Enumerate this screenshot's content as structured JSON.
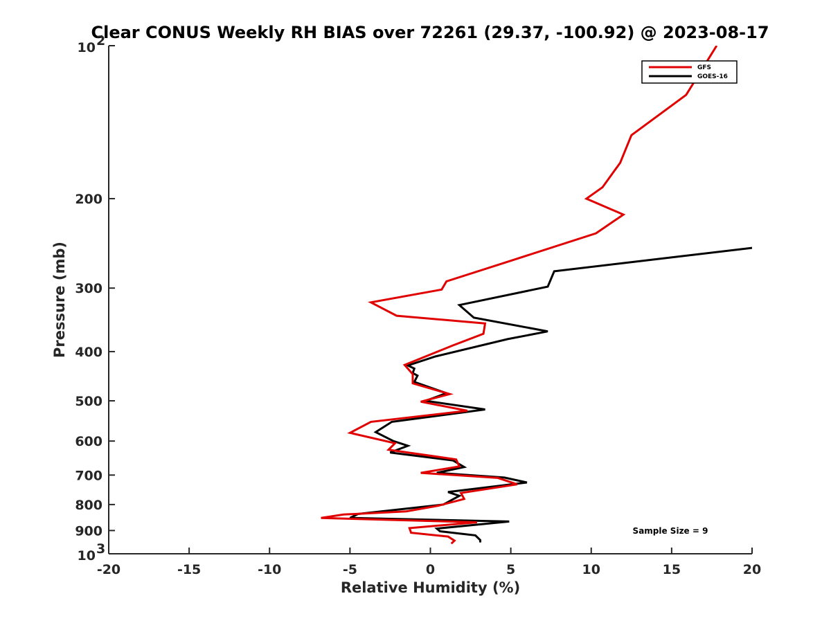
{
  "chart_data": {
    "type": "line",
    "title": "Clear CONUS Weekly RH BIAS over 72261 (29.37, -100.92) @ 2023-08-17",
    "xlabel": "Relative Humidity (%)",
    "ylabel": "Pressure (mb)",
    "xlim": [
      -20,
      20
    ],
    "ylim": [
      1000,
      100
    ],
    "yscale": "log",
    "y_reversed": true,
    "grid": false,
    "legend_position": "top-right",
    "x_ticks": [
      "-20",
      "-15",
      "-10",
      "-5",
      "0",
      "5",
      "10",
      "15",
      "20"
    ],
    "y_ticks": [
      {
        "value": 100,
        "base": "10",
        "exp": "2"
      },
      {
        "value": 200,
        "label": "200"
      },
      {
        "value": 300,
        "label": "300"
      },
      {
        "value": 400,
        "label": "400"
      },
      {
        "value": 500,
        "label": "500"
      },
      {
        "value": 600,
        "label": "600"
      },
      {
        "value": 700,
        "label": "700"
      },
      {
        "value": 800,
        "label": "800"
      },
      {
        "value": 900,
        "label": "900"
      },
      {
        "value": 1000,
        "base": "10",
        "exp": "3"
      }
    ],
    "annotation": "Sample Size = 9",
    "series": [
      {
        "name": "GFS",
        "color": "#e00000",
        "points": [
          [
            17.8,
            100
          ],
          [
            15.9,
            125
          ],
          [
            12.5,
            150
          ],
          [
            11.8,
            170
          ],
          [
            10.7,
            190
          ],
          [
            9.7,
            200
          ],
          [
            12.0,
            215
          ],
          [
            10.3,
            234
          ],
          [
            5.0,
            265
          ],
          [
            1.0,
            291
          ],
          [
            0.7,
            302
          ],
          [
            -3.7,
            320
          ],
          [
            -2.1,
            340
          ],
          [
            3.4,
            352
          ],
          [
            3.3,
            369
          ],
          [
            1.4,
            389
          ],
          [
            -1.6,
            425
          ],
          [
            -1.1,
            443
          ],
          [
            -1.1,
            462
          ],
          [
            1.2,
            485
          ],
          [
            -0.6,
            502
          ],
          [
            2.3,
            523
          ],
          [
            -3.7,
            550
          ],
          [
            -5.0,
            578
          ],
          [
            -2.2,
            606
          ],
          [
            -2.6,
            624
          ],
          [
            1.6,
            652
          ],
          [
            1.8,
            673
          ],
          [
            -0.6,
            693
          ],
          [
            4.2,
            709
          ],
          [
            5.4,
            730
          ],
          [
            1.9,
            759
          ],
          [
            2.1,
            780
          ],
          [
            0.5,
            804
          ],
          [
            -1.5,
            825
          ],
          [
            -5.4,
            837
          ],
          [
            -6.8,
            850
          ],
          [
            2.9,
            867
          ],
          [
            -1.3,
            890
          ],
          [
            -1.2,
            909
          ],
          [
            1.1,
            925
          ],
          [
            1.5,
            942
          ],
          [
            1.3,
            955
          ]
        ]
      },
      {
        "name": "GOES-16",
        "color": "#000000",
        "points": [
          [
            20.0,
            250
          ],
          [
            7.7,
            278
          ],
          [
            7.3,
            298
          ],
          [
            1.8,
            324
          ],
          [
            2.7,
            343
          ],
          [
            7.3,
            365
          ],
          [
            4.8,
            378
          ],
          [
            0.3,
            409
          ],
          [
            -1.4,
            426
          ],
          [
            -1.0,
            432
          ],
          [
            -1.1,
            441
          ],
          [
            -0.8,
            446
          ],
          [
            -1.0,
            459
          ],
          [
            1.0,
            483
          ],
          [
            -0.3,
            500
          ],
          [
            3.4,
            520
          ],
          [
            -2.4,
            550
          ],
          [
            -3.4,
            576
          ],
          [
            -2.3,
            600
          ],
          [
            -1.4,
            613
          ],
          [
            -2.5,
            632
          ],
          [
            1.4,
            655
          ],
          [
            2.1,
            675
          ],
          [
            0.4,
            693
          ],
          [
            4.6,
            708
          ],
          [
            6.0,
            724
          ],
          [
            1.1,
            756
          ],
          [
            1.8,
            769
          ],
          [
            0.8,
            800
          ],
          [
            -4.5,
            835
          ],
          [
            -5.0,
            850
          ],
          [
            4.9,
            864
          ],
          [
            0.4,
            892
          ],
          [
            0.6,
            903
          ],
          [
            2.8,
            920
          ],
          [
            3.1,
            940
          ],
          [
            3.1,
            950
          ]
        ]
      }
    ]
  }
}
